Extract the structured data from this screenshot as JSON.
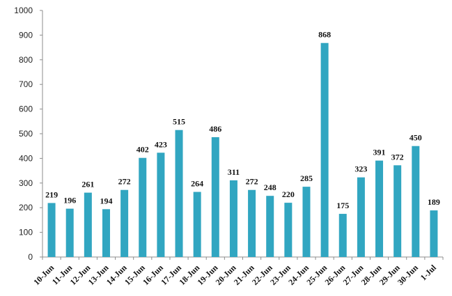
{
  "chart_data": {
    "type": "bar",
    "categories": [
      "10-Jun",
      "11-Jun",
      "12-Jun",
      "13-Jun",
      "14-Jun",
      "15-Jun",
      "16-Jun",
      "17-Jun",
      "18-Jun",
      "19-Jun",
      "20-Jun",
      "21-Jun",
      "22-Jun",
      "23-Jun",
      "24-Jun",
      "25-Jun",
      "26-Jun",
      "27-Jun",
      "28-Jun",
      "29-Jun",
      "30-Jun",
      "1-Jul"
    ],
    "values": [
      219,
      196,
      261,
      194,
      272,
      402,
      423,
      515,
      264,
      486,
      311,
      272,
      248,
      220,
      285,
      868,
      175,
      323,
      391,
      372,
      450,
      189
    ],
    "data_labels": [
      "219",
      "196",
      "261",
      "194",
      "272",
      "402",
      "423",
      "515",
      "264",
      "486",
      "311",
      "272",
      "248",
      "220",
      "285",
      "868",
      "175",
      "323",
      "391",
      "372",
      "450",
      "189"
    ],
    "y_ticks": [
      "0",
      "100",
      "200",
      "300",
      "400",
      "500",
      "600",
      "700",
      "800",
      "900",
      "1000"
    ],
    "title": "",
    "xlabel": "",
    "ylabel": "",
    "ylim": [
      0,
      1000
    ],
    "grid": false,
    "legend": "none",
    "bar_color": "#31a6c1",
    "axis_color": "#8c8c8c"
  }
}
